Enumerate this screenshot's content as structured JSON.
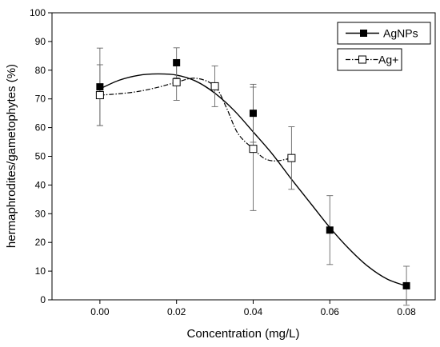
{
  "chart_data": {
    "type": "scatter",
    "xlabel": "Concentration (mg/L)",
    "ylabel": "hermaphrodites/gametophytes (%)",
    "xlim": [
      -0.0125,
      0.0875
    ],
    "ylim": [
      0,
      100
    ],
    "x_ticks": [
      "0.00",
      "0.02",
      "0.04",
      "0.06",
      "0.08"
    ],
    "x_tick_values": [
      0,
      0.02,
      0.04,
      0.06,
      0.08
    ],
    "y_ticks": [
      "0",
      "10",
      "20",
      "30",
      "40",
      "50",
      "60",
      "70",
      "80",
      "90",
      "100"
    ],
    "y_tick_values": [
      0,
      10,
      20,
      30,
      40,
      50,
      60,
      70,
      80,
      90,
      100
    ],
    "grid": false,
    "legend_position": "top-right",
    "series": [
      {
        "name": "AgNPs",
        "marker": "filled-square",
        "line_style": "solid",
        "color": "#000000",
        "x": [
          0,
          0.02,
          0.04,
          0.06,
          0.08
        ],
        "y": [
          74.2,
          82.6,
          65.0,
          24.3,
          4.9
        ],
        "error": [
          13.5,
          5.2,
          10.1,
          12.0,
          6.8
        ],
        "fit_curve": {
          "x": [
            0,
            0.005,
            0.01,
            0.015,
            0.02,
            0.025,
            0.03,
            0.035,
            0.04,
            0.045,
            0.05,
            0.055,
            0.06,
            0.065,
            0.07,
            0.075,
            0.08
          ],
          "y": [
            73.5,
            76.5,
            78.2,
            78.7,
            78.3,
            76.2,
            72.0,
            66.0,
            58.5,
            50.8,
            42.0,
            33.6,
            25.2,
            17.8,
            11.6,
            7.2,
            4.8
          ]
        }
      },
      {
        "name": "Ag+",
        "marker": "open-square",
        "line_style": "dash-dot",
        "color": "#000000",
        "x": [
          0,
          0.02,
          0.03,
          0.04,
          0.05
        ],
        "y": [
          71.3,
          75.8,
          74.4,
          52.6,
          49.4
        ],
        "error": [
          10.6,
          6.3,
          7.1,
          21.5,
          10.9
        ],
        "fit_curve": {
          "x": [
            0,
            0.005,
            0.01,
            0.015,
            0.02,
            0.025,
            0.03,
            0.033,
            0.036,
            0.04,
            0.043,
            0.046,
            0.05
          ],
          "y": [
            71.3,
            71.8,
            72.6,
            74.0,
            75.8,
            77.2,
            74.4,
            67.0,
            58.0,
            52.6,
            49.2,
            48.4,
            49.4
          ]
        }
      }
    ]
  }
}
